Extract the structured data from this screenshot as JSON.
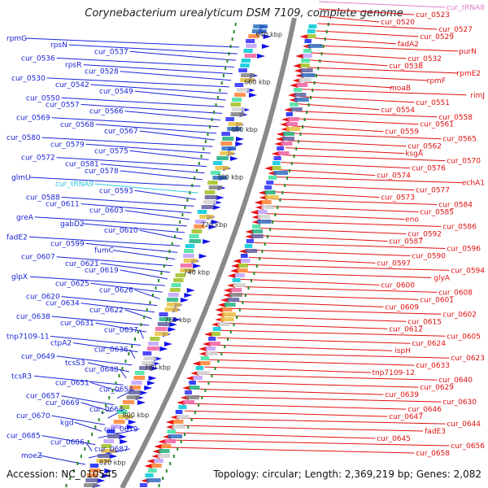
{
  "title": "Corynebacterium urealyticum DSM 7109, complete genome",
  "accession_text": "Accession: NC_010545",
  "summary_text": "Topology: circular; Length: 2,369,219 bp; Genes: 2,082",
  "colors": {
    "left_label": "#1a24d6",
    "right_label": "#e01010",
    "trna_right": "#e080c8",
    "trna_left": "#2cc8e0",
    "backbone": "#8a8a8a",
    "gc_dots": "#2a8a2a"
  },
  "scale_ticks": [
    "640 kbp",
    "660 kbp",
    "680 kbp",
    "700 kbp",
    "720 kbp",
    "740 kbp",
    "760 kbp",
    "780 kbp",
    "800 kbp",
    "820 kbp"
  ],
  "left_labels": [
    "rpmG",
    "rpsN",
    "cur_0537",
    "cur_0536",
    "rpsR",
    "cur_0528",
    "cur_0530",
    "cur_0542",
    "cur_0549",
    "cur_0550",
    "cur_0557",
    "cur_0566",
    "cur_0569",
    "cur_0568",
    "cur_0567",
    "cur_0580",
    "cur_0579",
    "cur_0575",
    "cur_0572",
    "cur_0581",
    "cur_0578",
    "glmU",
    "cur_tRNA9",
    "cur_0593",
    "cur_0588",
    "cur_0611",
    "cur_0603",
    "greA",
    "gabD2",
    "cur_0610",
    "fadE2",
    "cur_0599",
    "fumC",
    "cur_0607",
    "cur_0621",
    "cur_0619",
    "glpX",
    "cur_0625",
    "cur_0626",
    "cur_0620",
    "cur_0634",
    "cur_0622",
    "cur_0638",
    "cur_0631",
    "cur_0637",
    "tnp7109-11",
    "ctpA2",
    "cur_0636",
    "cur_0649",
    "tcsS3",
    "cur_0648",
    "tcsR3",
    "cur_0651",
    "cur_0654",
    "cur_0657",
    "cur_0669",
    "cur_0664",
    "cur_0670",
    "kgd",
    "cur_0679",
    "cur_0685",
    "cur_0686",
    "cur_0687",
    "moeZ"
  ],
  "right_labels": [
    "cur_tRNA8",
    "cur_0523",
    "cur_0520",
    "cur_0527",
    "cur_0529",
    "fadA2",
    "purN",
    "cur_0532",
    "cur_0538",
    "rpmE2",
    "rpmF",
    "moaB",
    "rimJ",
    "cur_0551",
    "cur_0554",
    "cur_0558",
    "cur_0561",
    "cur_0559",
    "cur_0565",
    "cur_0562",
    "ksgA",
    "cur_0570",
    "cur_0576",
    "cur_0574",
    "echA1",
    "cur_0577",
    "cur_0573",
    "cur_0584",
    "cur_0585",
    "eno",
    "cur_0586",
    "cur_0592",
    "cur_0587",
    "cur_0596",
    "cur_0590",
    "cur_0597",
    "cur_0594",
    "glyA",
    "cur_0600",
    "cur_0608",
    "cur_0601",
    "cur_0609",
    "cur_0602",
    "cur_0615",
    "cur_0612",
    "cur_0605",
    "cur_0624",
    "ispH",
    "cur_0623",
    "cur_0633",
    "tnp7109-12",
    "cur_0640",
    "cur_0629",
    "cur_0639",
    "cur_0630",
    "cur_0646",
    "cur_0647",
    "cur_0644",
    "fadE3",
    "cur_0645",
    "cur_0656",
    "cur_0658"
  ]
}
